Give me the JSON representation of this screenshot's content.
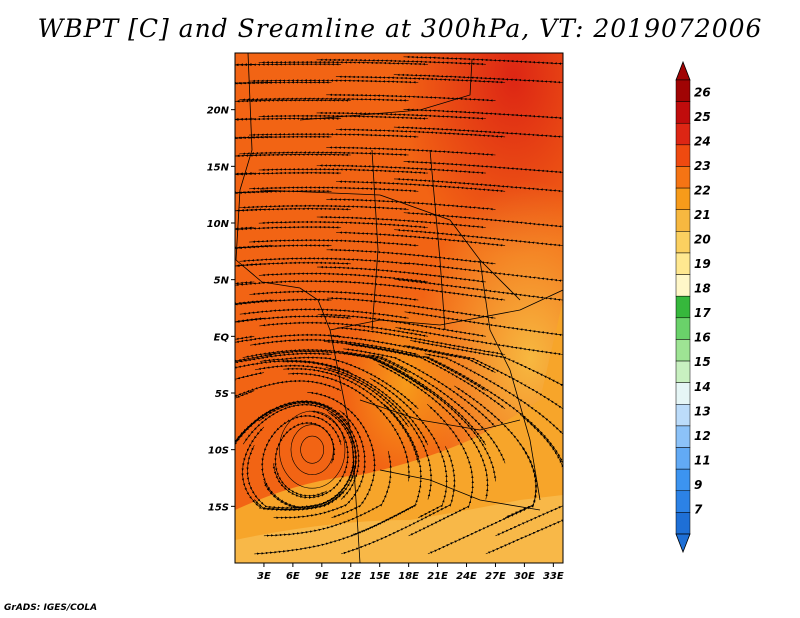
{
  "title": "WBPT [C] and Sreamline at 300hPa, VT: 2019072006",
  "credit": "GrADS: IGES/COLA",
  "map": {
    "lat_labels": [
      "20N",
      "15N",
      "10N",
      "5N",
      "EQ",
      "5S",
      "10S",
      "15S"
    ],
    "lat_values": [
      20,
      15,
      10,
      5,
      0,
      -5,
      -10,
      -15
    ],
    "lon_labels": [
      "3E",
      "6E",
      "9E",
      "12E",
      "15E",
      "18E",
      "21E",
      "24E",
      "27E",
      "30E",
      "33E"
    ],
    "lon_values": [
      3,
      6,
      9,
      12,
      15,
      18,
      21,
      24,
      27,
      30,
      33
    ],
    "lon_range": [
      0,
      34
    ],
    "lat_range": [
      -20,
      25
    ],
    "field": "WBPT [C]",
    "level": "300hPa",
    "valid_time": "2019072006",
    "vortex_center": {
      "lon": 8,
      "lat": -10
    }
  },
  "colorbar": {
    "levels": [
      "7",
      "9",
      "11",
      "12",
      "13",
      "14",
      "15",
      "16",
      "17",
      "18",
      "19",
      "20",
      "21",
      "22",
      "23",
      "24",
      "25",
      "26"
    ],
    "colors": [
      "#1e6fd6",
      "#2c82e6",
      "#3c94f0",
      "#62aaf5",
      "#8cc2f8",
      "#bcdcfa",
      "#e6f6f6",
      "#c8f0c0",
      "#9ee494",
      "#6ad26a",
      "#36b83c",
      "#fff7c8",
      "#ffe890",
      "#fbd060",
      "#f7b840",
      "#f79b1a",
      "#f57414",
      "#ef4a10",
      "#dd2614",
      "#c00c0c",
      "#a00404"
    ],
    "arrow_down_color": "#1e6fd6",
    "arrow_up_color": "#a00404"
  }
}
